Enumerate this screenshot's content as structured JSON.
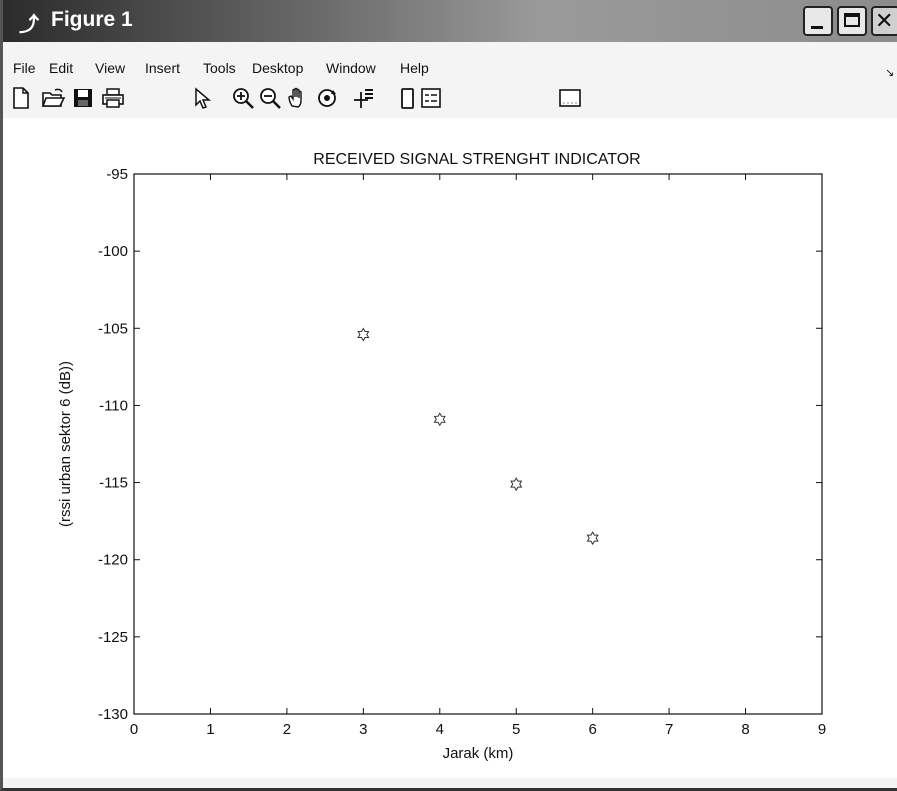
{
  "window": {
    "title": "Figure 1"
  },
  "menu": [
    "File",
    "Edit",
    "View",
    "Insert",
    "Tools",
    "Desktop",
    "Window",
    "Help"
  ],
  "toolbar": [
    {
      "name": "new-figure-icon"
    },
    {
      "name": "open-file-icon"
    },
    {
      "name": "save-icon"
    },
    {
      "name": "print-icon"
    },
    {
      "name": "edit-plot-pointer-icon"
    },
    {
      "name": "zoom-in-icon"
    },
    {
      "name": "zoom-out-icon"
    },
    {
      "name": "pan-hand-icon"
    },
    {
      "name": "rotate-3d-icon"
    },
    {
      "name": "data-cursor-icon"
    },
    {
      "name": "colorbar-icon"
    },
    {
      "name": "legend-icon"
    },
    {
      "name": "plot-tools-icon"
    }
  ],
  "chart_data": {
    "type": "scatter",
    "title": "RECEIVED SIGNAL STRENGHT INDICATOR",
    "xlabel": "Jarak (km)",
    "ylabel": "(rssi urban sektor 6 (dB))",
    "xlim": [
      0,
      9
    ],
    "ylim": [
      -130,
      -95
    ],
    "xticks": [
      "0",
      "1",
      "2",
      "3",
      "4",
      "5",
      "6",
      "7",
      "8",
      "9"
    ],
    "yticks": [
      "-95",
      "-100",
      "-105",
      "-110",
      "-115",
      "-120",
      "-125",
      "-130"
    ],
    "grid": false,
    "marker": "hexagram",
    "x": [
      3,
      4,
      5,
      6
    ],
    "y": [
      -105.4,
      -110.9,
      -115.1,
      -118.6
    ]
  }
}
